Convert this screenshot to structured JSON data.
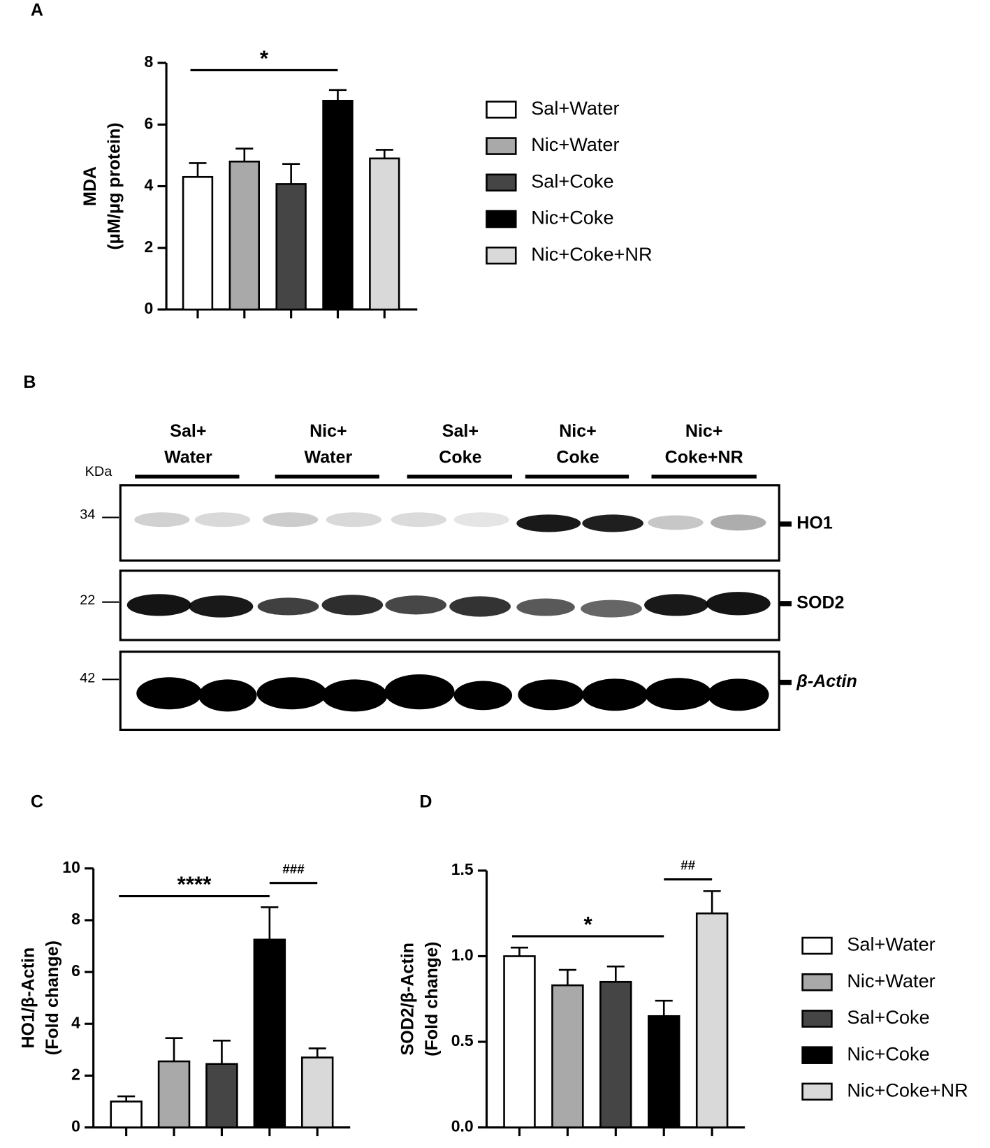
{
  "chart_data": [
    {
      "type": "bar",
      "panel": "A",
      "y_label": [
        "MDA",
        "(μM/μg protein)"
      ],
      "categories": [
        "Sal+Water",
        "Nic+Water",
        "Sal+Coke",
        "Nic+Coke",
        "Nic+Coke+NR"
      ],
      "colors": [
        "#ffffff",
        "#a9a9a9",
        "#454545",
        "#000000",
        "#d9d9d9"
      ],
      "values": [
        4.3,
        4.8,
        4.07,
        6.77,
        4.9
      ],
      "errors": [
        0.45,
        0.42,
        0.65,
        0.35,
        0.28
      ],
      "ylim": [
        0,
        8
      ],
      "yticks": [
        0,
        2,
        4,
        6,
        8
      ],
      "legend": true,
      "annotations": [
        {
          "text": "*",
          "between": [
            0,
            3
          ]
        }
      ]
    },
    {
      "type": "bar",
      "panel": "C",
      "y_label": [
        "HO1/β-Actin",
        "(Fold change)"
      ],
      "colors": [
        "#ffffff",
        "#a9a9a9",
        "#454545",
        "#000000",
        "#d9d9d9"
      ],
      "values": [
        1.0,
        2.55,
        2.45,
        7.25,
        2.7
      ],
      "errors": [
        0.2,
        0.9,
        0.9,
        1.25,
        0.35
      ],
      "ylim": [
        0,
        10
      ],
      "yticks": [
        0,
        2,
        4,
        6,
        8,
        10
      ],
      "legend": false,
      "annotations": [
        {
          "text": "****",
          "between": [
            0,
            3
          ]
        },
        {
          "text": "###",
          "between": [
            3,
            4
          ]
        }
      ]
    },
    {
      "type": "bar",
      "panel": "D",
      "y_label": [
        "SOD2/β-Actin",
        "(Fold change)"
      ],
      "categories": [
        "Sal+Water",
        "Nic+Water",
        "Sal+Coke",
        "Nic+Coke",
        "Nic+Coke+NR"
      ],
      "colors": [
        "#ffffff",
        "#a9a9a9",
        "#454545",
        "#000000",
        "#d9d9d9"
      ],
      "values": [
        1.0,
        0.83,
        0.85,
        0.65,
        1.25
      ],
      "errors": [
        0.05,
        0.09,
        0.09,
        0.09,
        0.13
      ],
      "ylim": [
        0,
        1.5
      ],
      "yticks": [
        {
          "value": 0,
          "label": "0.0"
        },
        0.5,
        {
          "value": 1,
          "label": "1.0"
        },
        1.5
      ],
      "legend": true,
      "annotations": [
        {
          "text": "*",
          "between": [
            0,
            3
          ]
        },
        {
          "text": "##",
          "between": [
            3,
            4
          ]
        }
      ]
    }
  ],
  "blot": {
    "panel": "B",
    "kda_label": "KDa",
    "groups": [
      {
        "lines": [
          "Sal+",
          "Water"
        ]
      },
      {
        "lines": [
          "Nic+",
          "Water"
        ]
      },
      {
        "lines": [
          "Sal+",
          "Coke"
        ]
      },
      {
        "lines": [
          "Nic+",
          "Coke"
        ]
      },
      {
        "lines": [
          "Nic+",
          "Coke+NR"
        ]
      }
    ],
    "rows": [
      {
        "kda": "34",
        "protein": "HO1"
      },
      {
        "kda": "22",
        "protein": "SOD2"
      },
      {
        "kda": "42",
        "protein": "β-Actin"
      }
    ]
  }
}
